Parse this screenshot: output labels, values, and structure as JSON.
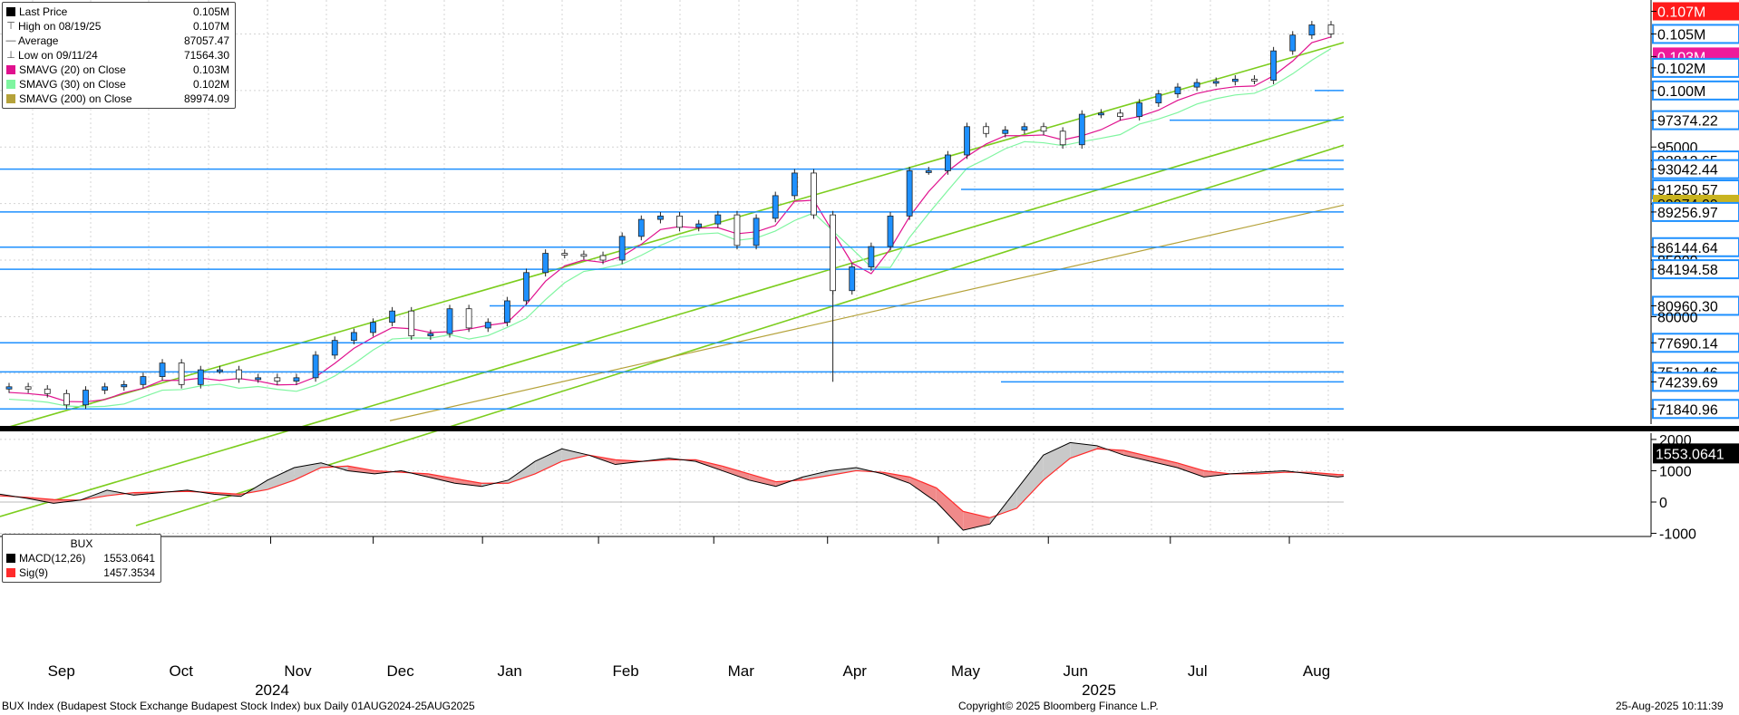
{
  "colors": {
    "up_candle": "#1e90ff",
    "down_candle": "#ffffff",
    "channel": "#7ccd1e",
    "sma20": "#e0118e",
    "sma30": "#7ff5a0",
    "sma200": "#b5a23a",
    "hline": "#1e90ff",
    "macd_line": "#000000",
    "sig_line": "#ff2b2b",
    "macd_pos_fill": "#c9c9c9",
    "macd_neg_fill": "#f08a8a",
    "tag_red": "#ff1a1a",
    "tag_magenta": "#ee1a9a",
    "tag_olive": "#c9b420"
  },
  "legend_main": {
    "rows": [
      {
        "icon": "square-icon",
        "label": "Last Price",
        "value": "0.105M"
      },
      {
        "icon": "high-marker-icon",
        "label": "High on 08/19/25",
        "value": "0.107M"
      },
      {
        "icon": "average-marker-icon",
        "label": "Average",
        "value": "87057.47"
      },
      {
        "icon": "low-marker-icon",
        "label": "Low on 09/11/24",
        "value": "71564.30"
      },
      {
        "icon": "magenta-swatch",
        "label": "SMAVG (20)  on Close",
        "value": "0.103M"
      },
      {
        "icon": "green-swatch",
        "label": "SMAVG (30)  on Close",
        "value": "0.102M"
      },
      {
        "icon": "olive-swatch",
        "label": "SMAVG (200)  on Close",
        "value": "89974.09"
      }
    ]
  },
  "legend_macd": {
    "title": "BUX",
    "rows": [
      {
        "label": "MACD(12,26)",
        "value": "1553.0641"
      },
      {
        "label": "Sig(9)",
        "value": "1457.3534"
      }
    ]
  },
  "footer": {
    "left": "BUX Index (Budapest Stock Exchange Budapest Stock Index) bux  Daily 01AUG2024-25AUG2025",
    "center": "Copyright© 2025 Bloomberg Finance L.P.",
    "right": "25-Aug-2025 10:11:39"
  },
  "chart_data": [
    {
      "type": "candlestick",
      "title": "BUX Index (Budapest Stock Exchange Budapest Stock Index) bux  Daily 01AUG2024-25AUG2025",
      "ylim": [
        70500,
        108000
      ],
      "y_tick_labels": [
        "75000",
        "80000",
        "85000",
        "90000",
        "95000"
      ],
      "x_month_labels": [
        "Sep",
        "Oct",
        "Nov",
        "Dec",
        "Jan",
        "Feb",
        "Mar",
        "Apr",
        "May",
        "Jun",
        "Jul",
        "Aug"
      ],
      "x_year_labels": [
        "2024",
        "2025"
      ],
      "price_path_weekly_close": [
        73800,
        73600,
        73200,
        72200,
        73500,
        73800,
        74000,
        74700,
        75900,
        74000,
        75300,
        75300,
        74500,
        74600,
        74300,
        74600,
        76600,
        77900,
        78600,
        79500,
        80500,
        78300,
        78500,
        80700,
        79000,
        79500,
        81400,
        83900,
        85600,
        85500,
        85400,
        85000,
        87100,
        88600,
        88900,
        87900,
        88200,
        89000,
        86300,
        88700,
        90700,
        92700,
        89000,
        82300,
        84400,
        86200,
        88900,
        92900,
        92900,
        94300,
        96800,
        96200,
        96500,
        96800,
        96400,
        95200,
        97900,
        98000,
        97700,
        98900,
        99700,
        100300,
        100700,
        100800,
        101000,
        100900,
        103500,
        104900,
        105800,
        105000
      ],
      "horizontal_levels": [
        "0.107M",
        "0.105M",
        "0.103M",
        "0.102M",
        "0.100M",
        "97374.22",
        "93812.65",
        "93042.44",
        "91250.57",
        "89974.09",
        "89256.97",
        "86144.64",
        "84194.58",
        "80960.30",
        "77690.14",
        "75120.46",
        "74239.69",
        "71840.96"
      ],
      "price_tags": [
        {
          "text": "0.107M",
          "style": "red"
        },
        {
          "text": "0.105M",
          "style": "black"
        },
        {
          "text": "0.105M",
          "style": "box"
        },
        {
          "text": "0.103M",
          "style": "magenta"
        },
        {
          "text": "0.102M",
          "style": "box"
        },
        {
          "text": "0.100M",
          "style": "box"
        },
        {
          "text": "97374.22",
          "style": "box"
        },
        {
          "text": "95000",
          "style": "plain"
        },
        {
          "text": "93812.65",
          "style": "box"
        },
        {
          "text": "93042.44",
          "style": "box"
        },
        {
          "text": "91250.57",
          "style": "box"
        },
        {
          "text": "89974.09",
          "style": "olive"
        },
        {
          "text": "89256.97",
          "style": "box"
        },
        {
          "text": "86144.64",
          "style": "box"
        },
        {
          "text": "85000",
          "style": "plain"
        },
        {
          "text": "84194.58",
          "style": "box"
        },
        {
          "text": "80960.30",
          "style": "box"
        },
        {
          "text": "80000",
          "style": "plain"
        },
        {
          "text": "77690.14",
          "style": "box"
        },
        {
          "text": "75120.46",
          "style": "box"
        },
        {
          "text": "74239.69",
          "style": "box"
        },
        {
          "text": "71840.96",
          "style": "box"
        }
      ],
      "series": [
        {
          "name": "Last Price",
          "last": 105000,
          "high": 107000,
          "low": 71564.3,
          "average": 87057.47
        },
        {
          "name": "SMAVG (20)  on Close",
          "last": 103000
        },
        {
          "name": "SMAVG (30)  on Close",
          "last": 102000
        },
        {
          "name": "SMAVG (200)  on Close",
          "last": 89974.09
        }
      ]
    },
    {
      "type": "line",
      "title": "BUX",
      "ylim": [
        -1100,
        2200
      ],
      "y_tick_labels": [
        "2000",
        "1000",
        "0",
        "-1000"
      ],
      "series": [
        {
          "name": "MACD(12,26)",
          "last": 1553.0641,
          "values": [
            250,
            120,
            -40,
            60,
            380,
            220,
            300,
            380,
            250,
            180,
            700,
            1100,
            1250,
            1000,
            900,
            1000,
            800,
            600,
            500,
            700,
            1300,
            1700,
            1500,
            1200,
            1300,
            1400,
            1300,
            1000,
            700,
            500,
            800,
            1000,
            1100,
            900,
            600,
            0,
            -900,
            -700,
            400,
            1500,
            1900,
            1800,
            1500,
            1300,
            1100,
            800,
            900,
            950,
            1000,
            900,
            800,
            900,
            1100,
            1050,
            900,
            900,
            800,
            700,
            1000,
            1300,
            1500,
            1553
          ]
        },
        {
          "name": "Sig(9)",
          "last": 1457.3534,
          "values": [
            200,
            150,
            80,
            60,
            200,
            300,
            320,
            340,
            300,
            250,
            400,
            700,
            1100,
            1150,
            1000,
            950,
            900,
            750,
            600,
            600,
            900,
            1300,
            1500,
            1350,
            1300,
            1350,
            1350,
            1150,
            900,
            650,
            700,
            850,
            1000,
            950,
            800,
            450,
            -300,
            -500,
            -200,
            700,
            1400,
            1700,
            1650,
            1450,
            1250,
            1000,
            900,
            900,
            950,
            950,
            880,
            870,
            950,
            1000,
            950,
            920,
            870,
            800,
            850,
            1100,
            1300,
            1457
          ]
        }
      ]
    }
  ]
}
